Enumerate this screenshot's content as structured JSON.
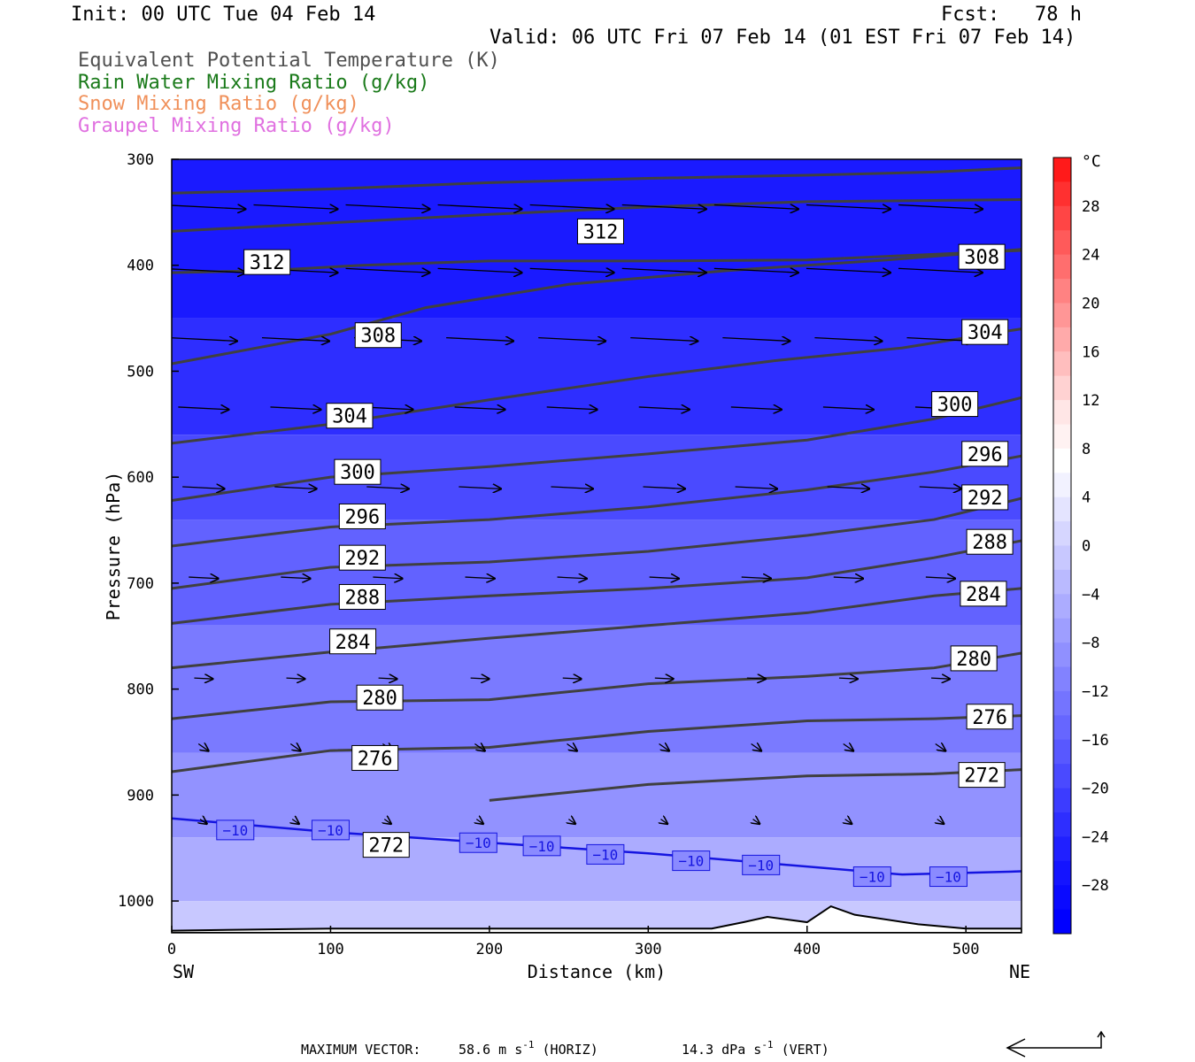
{
  "header": {
    "init": "Init: 00 UTC Tue 04 Feb 14",
    "fcst": "Fcst:   78 h",
    "valid": "Valid: 06 UTC Fri 07 Feb 14 (01 EST Fri 07 Feb 14)"
  },
  "legend": [
    {
      "label": "Equivalent Potential Temperature (K)",
      "color": "#505050"
    },
    {
      "label": "Rain Water Mixing Ratio (g/kg)",
      "color": "#1a7a1a"
    },
    {
      "label": "Snow Mixing Ratio (g/kg)",
      "color": "#f0905a"
    },
    {
      "label": "Graupel Mixing Ratio (g/kg)",
      "color": "#e070e0"
    }
  ],
  "footer": {
    "max_vector_label": "MAXIMUM VECTOR:",
    "horiz": "58.6 m s",
    "horiz_unit": "(HORIZ)",
    "vert": "14.3 dPa s",
    "vert_unit": "(VERT)",
    "exponent": "-1"
  },
  "chart_data": {
    "type": "heatmap",
    "xlabel": "Distance (km)",
    "ylabel": "Pressure (hPa)",
    "x_left_label": "SW",
    "x_right_label": "NE",
    "xlim": [
      0,
      535
    ],
    "ylim": [
      1030,
      300
    ],
    "x_ticks": [
      0,
      100,
      200,
      300,
      400,
      500
    ],
    "y_ticks": [
      300,
      400,
      500,
      600,
      700,
      800,
      900,
      1000
    ],
    "colorbar": {
      "unit": "°C",
      "tick_labels": [
        "28",
        "24",
        "20",
        "16",
        "12",
        "8",
        "4",
        "0",
        "−4",
        "−8",
        "−12",
        "−16",
        "−20",
        "−24",
        "−28"
      ],
      "tick_values": [
        28,
        24,
        20,
        16,
        12,
        8,
        4,
        0,
        -4,
        -8,
        -12,
        -16,
        -20,
        -24,
        -28
      ],
      "levels": [
        32,
        30,
        28,
        26,
        24,
        22,
        20,
        18,
        16,
        14,
        12,
        10,
        8,
        6,
        4,
        2,
        0,
        -2,
        -4,
        -6,
        -8,
        -10,
        -12,
        -14,
        -16,
        -18,
        -20,
        -22,
        -24,
        -26,
        -28,
        -30,
        -32
      ],
      "colors": [
        "#ff1a1a",
        "#ff3030",
        "#ff4545",
        "#ff5a5a",
        "#ff6e6e",
        "#ff8282",
        "#ff9696",
        "#ffaaaa",
        "#ffbebe",
        "#ffd2d2",
        "#ffe6e6",
        "#fff2f2",
        "#ffffff",
        "#f2f2ff",
        "#e4e4ff",
        "#d6d6ff",
        "#c8c8ff",
        "#babaff",
        "#acacff",
        "#9e9eff",
        "#9090ff",
        "#8282ff",
        "#7474ff",
        "#6666ff",
        "#5858ff",
        "#4a4aff",
        "#3c3cff",
        "#2e2eff",
        "#2020ff",
        "#1414ff",
        "#0a0aff",
        "#0000ff"
      ]
    },
    "temperature_bands": [
      {
        "p": 300,
        "t": -32,
        "color": "#1a1aff"
      },
      {
        "p": 450,
        "t": -28,
        "color": "#2e2eff"
      },
      {
        "p": 560,
        "t": -24,
        "color": "#4a4aff"
      },
      {
        "p": 640,
        "t": -20,
        "color": "#6262ff"
      },
      {
        "p": 740,
        "t": -16,
        "color": "#7a7aff"
      },
      {
        "p": 860,
        "t": -12,
        "color": "#9292ff"
      },
      {
        "p": 940,
        "t": -8,
        "color": "#acacff"
      },
      {
        "p": 1000,
        "t": -4,
        "color": "#c8c8ff"
      }
    ],
    "theta_e_contours": [
      {
        "label": "312",
        "points": [
          [
            0,
            332
          ],
          [
            100,
            328
          ],
          [
            200,
            322
          ],
          [
            300,
            318
          ],
          [
            400,
            315
          ],
          [
            480,
            312
          ],
          [
            535,
            308
          ]
        ]
      },
      {
        "label": "312",
        "points": [
          [
            0,
            368
          ],
          [
            100,
            360
          ],
          [
            200,
            352
          ],
          [
            300,
            345
          ],
          [
            400,
            340
          ],
          [
            535,
            338
          ]
        ]
      },
      {
        "label": "312",
        "points": [
          [
            0,
            407
          ],
          [
            60,
            405
          ],
          [
            120,
            400
          ],
          [
            200,
            396
          ],
          [
            300,
            396
          ],
          [
            400,
            395
          ],
          [
            535,
            386
          ]
        ],
        "label_pos": [
          60,
          397
        ]
      },
      {
        "label": "312",
        "points": [
          [
            0,
            407
          ]
        ],
        "label_pos": [
          270,
          368
        ]
      },
      {
        "label": "308",
        "points": [
          [
            0,
            493
          ],
          [
            100,
            465
          ],
          [
            160,
            440
          ],
          [
            250,
            418
          ],
          [
            350,
            405
          ],
          [
            450,
            395
          ],
          [
            535,
            385
          ]
        ],
        "label_pos": [
          130,
          466
        ]
      },
      {
        "label": "308",
        "points": [
          [
            535,
            385
          ]
        ],
        "label_pos": [
          510,
          392
        ]
      },
      {
        "label": "304",
        "points": [
          [
            0,
            568
          ],
          [
            100,
            550
          ],
          [
            200,
            527
          ],
          [
            300,
            505
          ],
          [
            380,
            490
          ],
          [
            460,
            478
          ],
          [
            535,
            460
          ]
        ],
        "label_pos": [
          112,
          542
        ]
      },
      {
        "label": "304",
        "points": [
          [
            535,
            460
          ]
        ],
        "label_pos": [
          512,
          463
        ]
      },
      {
        "label": "300",
        "points": [
          [
            0,
            622
          ],
          [
            100,
            600
          ],
          [
            200,
            590
          ],
          [
            300,
            578
          ],
          [
            400,
            565
          ],
          [
            480,
            545
          ],
          [
            535,
            525
          ]
        ],
        "label_pos": [
          117,
          595
        ]
      },
      {
        "label": "300",
        "points": [
          [
            535,
            525
          ]
        ],
        "label_pos": [
          493,
          531
        ]
      },
      {
        "label": "296",
        "points": [
          [
            0,
            665
          ],
          [
            100,
            647
          ],
          [
            200,
            640
          ],
          [
            300,
            628
          ],
          [
            400,
            612
          ],
          [
            480,
            595
          ],
          [
            535,
            580
          ]
        ],
        "label_pos": [
          120,
          637
        ]
      },
      {
        "label": "296",
        "points": [
          [
            535,
            580
          ]
        ],
        "label_pos": [
          512,
          578
        ]
      },
      {
        "label": "292",
        "points": [
          [
            0,
            705
          ],
          [
            100,
            685
          ],
          [
            200,
            680
          ],
          [
            300,
            670
          ],
          [
            400,
            655
          ],
          [
            480,
            640
          ],
          [
            535,
            620
          ]
        ],
        "label_pos": [
          120,
          676
        ]
      },
      {
        "label": "292",
        "points": [
          [
            535,
            620
          ]
        ],
        "label_pos": [
          512,
          619
        ]
      },
      {
        "label": "288",
        "points": [
          [
            0,
            738
          ],
          [
            100,
            720
          ],
          [
            200,
            712
          ],
          [
            300,
            705
          ],
          [
            400,
            695
          ],
          [
            480,
            676
          ],
          [
            535,
            660
          ]
        ],
        "label_pos": [
          120,
          713
        ]
      },
      {
        "label": "288",
        "points": [
          [
            535,
            660
          ]
        ],
        "label_pos": [
          515,
          661
        ]
      },
      {
        "label": "284",
        "points": [
          [
            0,
            780
          ],
          [
            100,
            765
          ],
          [
            200,
            752
          ],
          [
            300,
            740
          ],
          [
            400,
            728
          ],
          [
            480,
            712
          ],
          [
            535,
            705
          ]
        ],
        "label_pos": [
          114,
          755
        ]
      },
      {
        "label": "284",
        "points": [
          [
            535,
            705
          ]
        ],
        "label_pos": [
          511,
          710
        ]
      },
      {
        "label": "280",
        "points": [
          [
            0,
            828
          ],
          [
            100,
            812
          ],
          [
            200,
            810
          ],
          [
            300,
            795
          ],
          [
            400,
            788
          ],
          [
            480,
            780
          ],
          [
            535,
            766
          ]
        ],
        "label_pos": [
          131,
          808
        ]
      },
      {
        "label": "280",
        "points": [
          [
            535,
            766
          ]
        ],
        "label_pos": [
          505,
          771
        ]
      },
      {
        "label": "276",
        "points": [
          [
            0,
            878
          ],
          [
            100,
            858
          ],
          [
            200,
            855
          ],
          [
            300,
            840
          ],
          [
            400,
            830
          ],
          [
            480,
            828
          ],
          [
            535,
            825
          ]
        ],
        "label_pos": [
          128,
          865
        ]
      },
      {
        "label": "276",
        "points": [
          [
            535,
            825
          ]
        ],
        "label_pos": [
          515,
          826
        ]
      },
      {
        "label": "272",
        "points": [
          [
            200,
            905
          ],
          [
            300,
            890
          ],
          [
            400,
            882
          ],
          [
            480,
            880
          ],
          [
            535,
            876
          ]
        ],
        "label_pos": [
          135,
          947
        ]
      },
      {
        "label": "272",
        "points": [
          [
            535,
            876
          ]
        ],
        "label_pos": [
          510,
          881
        ]
      }
    ],
    "isotherm_minus10": {
      "label": "−10",
      "points": [
        [
          0,
          922
        ],
        [
          100,
          935
        ],
        [
          200,
          945
        ],
        [
          300,
          955
        ],
        [
          380,
          965
        ],
        [
          460,
          975
        ],
        [
          535,
          972
        ]
      ],
      "label_positions": [
        [
          40,
          933
        ],
        [
          100,
          933
        ],
        [
          193,
          945
        ],
        [
          233,
          948
        ],
        [
          273,
          956
        ],
        [
          327,
          962
        ],
        [
          371,
          966
        ],
        [
          441,
          977
        ],
        [
          489,
          977
        ]
      ]
    },
    "wind_vectors_note": "horizontal and vertical wind arrows overlaid"
  }
}
